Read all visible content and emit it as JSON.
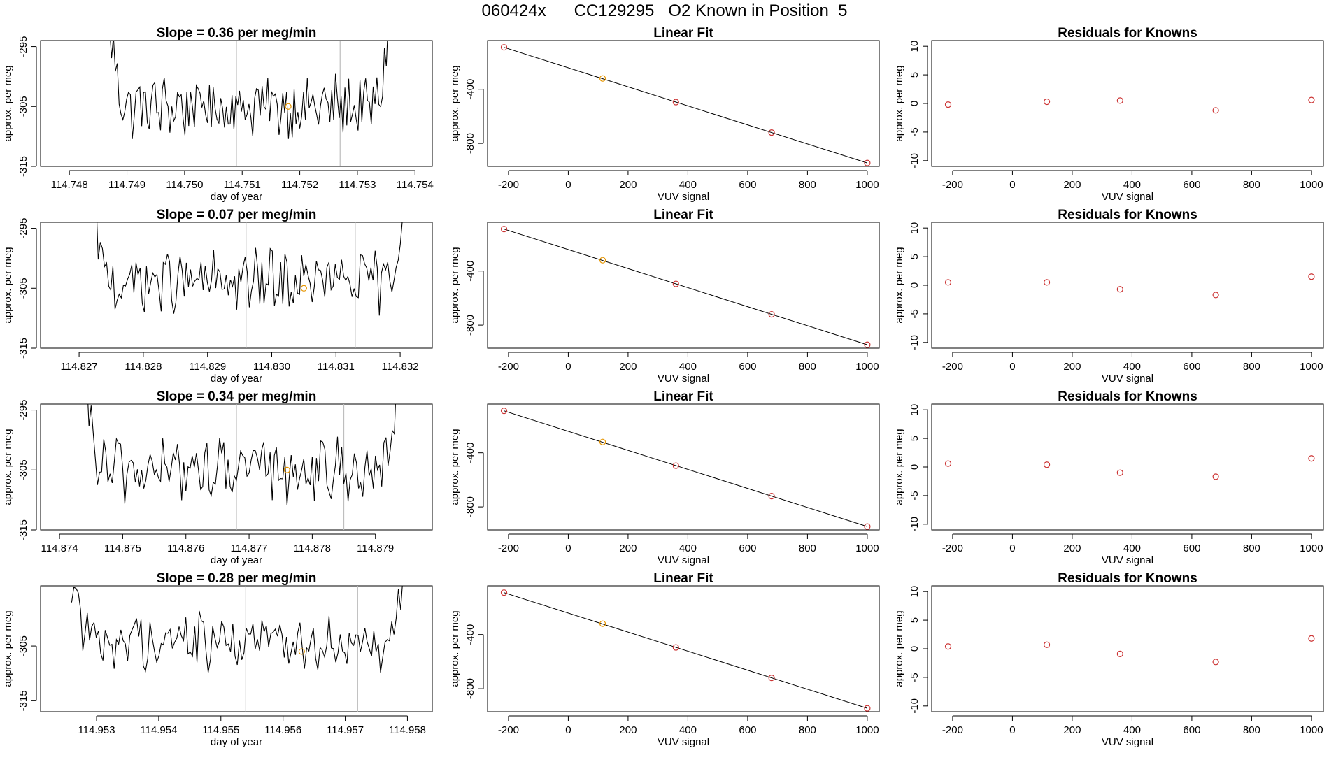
{
  "figure": {
    "title": "060424x      CC129295   O2 Known in Position  5",
    "colors": {
      "trace": "#000000",
      "vline": "#bebebe",
      "known_marker": "#cc3333",
      "sample_marker": "#e69500",
      "fit_line": "#000000"
    }
  },
  "chart_data": [
    {
      "type": "line",
      "title": "Slope =  0.36  per meg/min",
      "xlabel": "day of year",
      "ylabel": "approx. per meg",
      "xlim": [
        114.7475,
        114.7543
      ],
      "ylim": [
        -315,
        -294
      ],
      "xticks": [
        114.748,
        114.749,
        114.75,
        114.751,
        114.752,
        114.753,
        114.754
      ],
      "xtick_labels": [
        "114.748",
        "114.749",
        "114.750",
        "114.751",
        "114.752",
        "114.753",
        "114.754"
      ],
      "yticks": [
        -295,
        -305,
        -315
      ],
      "ytick_labels": [
        "-295",
        "-305",
        "-315"
      ],
      "x_start": 114.7487,
      "x_end": 114.7536,
      "baseline": -305,
      "vlines": [
        114.7509,
        114.7527
      ],
      "marker": {
        "x": 114.7518,
        "y": -305
      }
    },
    {
      "type": "line",
      "title": "Linear Fit",
      "xlabel": "VUV signal",
      "ylabel": "approx. per meg",
      "xlim": [
        -270,
        1040
      ],
      "ylim": [
        -970,
        -40
      ],
      "xticks": [
        -200,
        0,
        200,
        400,
        600,
        800,
        1000
      ],
      "xtick_labels": [
        "-200",
        "0",
        "200",
        "400",
        "600",
        "800",
        "1000"
      ],
      "yticks": [
        -400,
        -800
      ],
      "ytick_labels": [
        "-400",
        "-800"
      ],
      "line": [
        [
          -215,
          -90
        ],
        [
          1000,
          -945
        ]
      ],
      "points": [
        {
          "x": -215,
          "y": -90
        },
        {
          "x": 115,
          "y": -320
        },
        {
          "x": 360,
          "y": -495
        },
        {
          "x": 680,
          "y": -720
        },
        {
          "x": 1000,
          "y": -945
        }
      ],
      "sample_point_index": 1
    },
    {
      "type": "scatter",
      "title": "Residuals for Knowns",
      "xlabel": "VUV signal",
      "ylabel": "approx. per meg",
      "xlim": [
        -270,
        1040
      ],
      "ylim": [
        -11,
        11
      ],
      "xticks": [
        -200,
        0,
        200,
        400,
        600,
        800,
        1000
      ],
      "xtick_labels": [
        "-200",
        "0",
        "200",
        "400",
        "600",
        "800",
        "1000"
      ],
      "yticks": [
        10,
        5,
        0,
        -5,
        -10
      ],
      "ytick_labels": [
        "10",
        "5",
        "0",
        "-5",
        "-10"
      ],
      "points": [
        {
          "x": -215,
          "y": -0.2
        },
        {
          "x": 115,
          "y": 0.3
        },
        {
          "x": 360,
          "y": 0.5
        },
        {
          "x": 680,
          "y": -1.2
        },
        {
          "x": 1000,
          "y": 0.6
        }
      ]
    },
    {
      "type": "line",
      "title": "Slope =  0.07  per meg/min",
      "xlabel": "day of year",
      "ylabel": "approx. per meg",
      "xlim": [
        114.8264,
        114.8325
      ],
      "ylim": [
        -315,
        -294
      ],
      "xticks": [
        114.827,
        114.828,
        114.829,
        114.83,
        114.831,
        114.832
      ],
      "xtick_labels": [
        "114.827",
        "114.828",
        "114.829",
        "114.830",
        "114.831",
        "114.832"
      ],
      "yticks": [
        -295,
        -305,
        -315
      ],
      "ytick_labels": [
        "-295",
        "-305",
        "-315"
      ],
      "x_start": 114.8272,
      "x_end": 114.8321,
      "baseline": -304,
      "vlines": [
        114.8296,
        114.8313
      ],
      "marker": {
        "x": 114.8305,
        "y": -305
      }
    },
    {
      "type": "line",
      "title": "Linear Fit",
      "xlabel": "VUV signal",
      "ylabel": "approx. per meg",
      "xlim": [
        -270,
        1040
      ],
      "ylim": [
        -970,
        -40
      ],
      "xticks": [
        -200,
        0,
        200,
        400,
        600,
        800,
        1000
      ],
      "xtick_labels": [
        "-200",
        "0",
        "200",
        "400",
        "600",
        "800",
        "1000"
      ],
      "yticks": [
        -400,
        -800
      ],
      "ytick_labels": [
        "-400",
        "-800"
      ],
      "line": [
        [
          -215,
          -90
        ],
        [
          1000,
          -945
        ]
      ],
      "points": [
        {
          "x": -215,
          "y": -90
        },
        {
          "x": 115,
          "y": -320
        },
        {
          "x": 360,
          "y": -495
        },
        {
          "x": 680,
          "y": -720
        },
        {
          "x": 1000,
          "y": -945
        }
      ],
      "sample_point_index": 1
    },
    {
      "type": "scatter",
      "title": "Residuals for Knowns",
      "xlabel": "VUV signal",
      "ylabel": "approx. per meg",
      "xlim": [
        -270,
        1040
      ],
      "ylim": [
        -11,
        11
      ],
      "xticks": [
        -200,
        0,
        200,
        400,
        600,
        800,
        1000
      ],
      "xtick_labels": [
        "-200",
        "0",
        "200",
        "400",
        "600",
        "800",
        "1000"
      ],
      "yticks": [
        10,
        5,
        0,
        -5,
        -10
      ],
      "ytick_labels": [
        "10",
        "5",
        "0",
        "-5",
        "-10"
      ],
      "points": [
        {
          "x": -215,
          "y": 0.5
        },
        {
          "x": 115,
          "y": 0.5
        },
        {
          "x": 360,
          "y": -0.7
        },
        {
          "x": 680,
          "y": -1.7
        },
        {
          "x": 1000,
          "y": 1.5
        }
      ]
    },
    {
      "type": "line",
      "title": "Slope =  0.34  per meg/min",
      "xlabel": "day of year",
      "ylabel": "approx. per meg",
      "xlim": [
        114.8737,
        114.8799
      ],
      "ylim": [
        -315,
        -294
      ],
      "xticks": [
        114.874,
        114.875,
        114.876,
        114.877,
        114.878,
        114.879
      ],
      "xtick_labels": [
        "114.874",
        "114.875",
        "114.876",
        "114.877",
        "114.878",
        "114.879"
      ],
      "yticks": [
        -295,
        -305,
        -315
      ],
      "ytick_labels": [
        "-295",
        "-305",
        "-315"
      ],
      "x_start": 114.8744,
      "x_end": 114.8794,
      "baseline": -305,
      "vlines": [
        114.8768,
        114.8785
      ],
      "marker": {
        "x": 114.8776,
        "y": -305
      }
    },
    {
      "type": "line",
      "title": "Linear Fit",
      "xlabel": "VUV signal",
      "ylabel": "approx. per meg",
      "xlim": [
        -270,
        1040
      ],
      "ylim": [
        -970,
        -40
      ],
      "xticks": [
        -200,
        0,
        200,
        400,
        600,
        800,
        1000
      ],
      "xtick_labels": [
        "-200",
        "0",
        "200",
        "400",
        "600",
        "800",
        "1000"
      ],
      "yticks": [
        -400,
        -800
      ],
      "ytick_labels": [
        "-400",
        "-800"
      ],
      "line": [
        [
          -215,
          -90
        ],
        [
          1000,
          -945
        ]
      ],
      "points": [
        {
          "x": -215,
          "y": -90
        },
        {
          "x": 115,
          "y": -320
        },
        {
          "x": 360,
          "y": -495
        },
        {
          "x": 680,
          "y": -720
        },
        {
          "x": 1000,
          "y": -945
        }
      ],
      "sample_point_index": 1
    },
    {
      "type": "scatter",
      "title": "Residuals for Knowns",
      "xlabel": "VUV signal",
      "ylabel": "approx. per meg",
      "xlim": [
        -270,
        1040
      ],
      "ylim": [
        -11,
        11
      ],
      "xticks": [
        -200,
        0,
        200,
        400,
        600,
        800,
        1000
      ],
      "xtick_labels": [
        "-200",
        "0",
        "200",
        "400",
        "600",
        "800",
        "1000"
      ],
      "yticks": [
        10,
        5,
        0,
        -5,
        -10
      ],
      "ytick_labels": [
        "10",
        "5",
        "0",
        "-5",
        "-10"
      ],
      "points": [
        {
          "x": -215,
          "y": 0.6
        },
        {
          "x": 115,
          "y": 0.4
        },
        {
          "x": 360,
          "y": -1.0
        },
        {
          "x": 680,
          "y": -1.7
        },
        {
          "x": 1000,
          "y": 1.5
        }
      ]
    },
    {
      "type": "line",
      "title": "Slope =  0.28  per meg/min",
      "xlabel": "day of year",
      "ylabel": "approx. per meg",
      "xlim": [
        114.9521,
        114.9584
      ],
      "ylim": [
        -317,
        -294
      ],
      "xticks": [
        114.953,
        114.954,
        114.955,
        114.956,
        114.957,
        114.958
      ],
      "xtick_labels": [
        "114.953",
        "114.954",
        "114.955",
        "114.956",
        "114.957",
        "114.958"
      ],
      "yticks": [
        -305,
        -315
      ],
      "ytick_labels": [
        "-305",
        "-315"
      ],
      "x_start": 114.9526,
      "x_end": 114.958,
      "baseline": -304,
      "vlines": [
        114.9554,
        114.9572
      ],
      "marker": {
        "x": 114.9563,
        "y": -306
      }
    },
    {
      "type": "line",
      "title": "Linear Fit",
      "xlabel": "VUV signal",
      "ylabel": "approx. per meg",
      "xlim": [
        -270,
        1040
      ],
      "ylim": [
        -970,
        -40
      ],
      "xticks": [
        -200,
        0,
        200,
        400,
        600,
        800,
        1000
      ],
      "xtick_labels": [
        "-200",
        "0",
        "200",
        "400",
        "600",
        "800",
        "1000"
      ],
      "yticks": [
        -400,
        -800
      ],
      "ytick_labels": [
        "-400",
        "-800"
      ],
      "line": [
        [
          -215,
          -90
        ],
        [
          1000,
          -945
        ]
      ],
      "points": [
        {
          "x": -215,
          "y": -90
        },
        {
          "x": 115,
          "y": -320
        },
        {
          "x": 360,
          "y": -495
        },
        {
          "x": 680,
          "y": -720
        },
        {
          "x": 1000,
          "y": -945
        }
      ],
      "sample_point_index": 1
    },
    {
      "type": "scatter",
      "title": "Residuals for Knowns",
      "xlabel": "VUV signal",
      "ylabel": "approx. per meg",
      "xlim": [
        -270,
        1040
      ],
      "ylim": [
        -11,
        11
      ],
      "xticks": [
        -200,
        0,
        200,
        400,
        600,
        800,
        1000
      ],
      "xtick_labels": [
        "-200",
        "0",
        "200",
        "400",
        "600",
        "800",
        "1000"
      ],
      "yticks": [
        10,
        5,
        0,
        -5,
        -10
      ],
      "ytick_labels": [
        "10",
        "5",
        "0",
        "-5",
        "-10"
      ],
      "points": [
        {
          "x": -215,
          "y": 0.4
        },
        {
          "x": 115,
          "y": 0.7
        },
        {
          "x": 360,
          "y": -0.9
        },
        {
          "x": 680,
          "y": -2.3
        },
        {
          "x": 1000,
          "y": 1.8
        }
      ]
    }
  ]
}
